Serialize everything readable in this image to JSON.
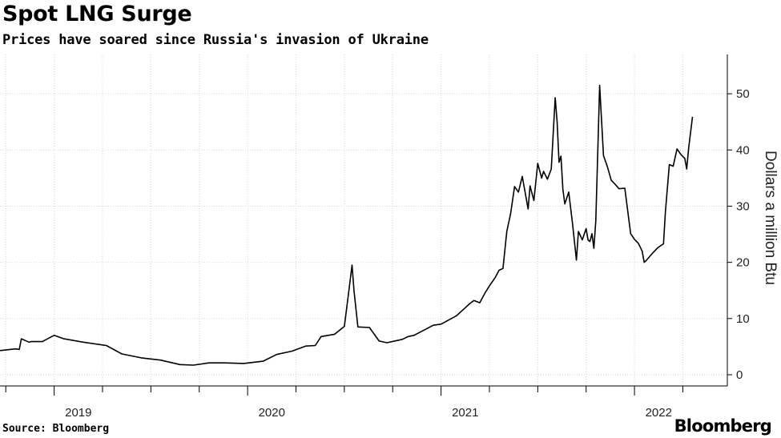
{
  "header": {
    "title": "Spot LNG Surge",
    "subtitle": "Prices have soared since Russia's invasion of Ukraine"
  },
  "footer": {
    "source": "Source: Bloomberg",
    "brand": "Bloomberg"
  },
  "colors": {
    "line": "#000000",
    "grid": "#d7d7d7",
    "axis": "#000000"
  },
  "chart_data": {
    "type": "line",
    "title": "Spot LNG Surge",
    "subtitle": "Prices have soared since Russia's invasion of Ukraine",
    "ylabel": "Dollars a million Btu",
    "xlabel": "",
    "xlim": [
      2018.72,
      2022.48
    ],
    "ylim": [
      -2,
      57
    ],
    "yticks": [
      0,
      10,
      20,
      30,
      40,
      50
    ],
    "xticks": [
      2019,
      2020,
      2021,
      2022
    ],
    "xtick_labels": [
      "2019",
      "2020",
      "2021",
      "2022"
    ],
    "grid": true,
    "y_axis_position": "right",
    "series": [
      {
        "values_x": [
          2018.72,
          2018.8,
          2018.82,
          2018.83,
          2018.87,
          2018.88,
          2018.94,
          2018.96,
          2019.0,
          2019.05,
          2019.15,
          2019.27,
          2019.35,
          2019.45,
          2019.55,
          2019.65,
          2019.72,
          2019.8,
          2019.88,
          2019.98,
          2020.08,
          2020.15,
          2020.23,
          2020.3,
          2020.35,
          2020.38,
          2020.45,
          2020.5,
          2020.52,
          2020.54,
          2020.55,
          2020.57,
          2020.63,
          2020.68,
          2020.72,
          2020.8,
          2020.83,
          2020.86,
          2020.96,
          2021.0,
          2021.08,
          2021.15,
          2021.17,
          2021.2,
          2021.23,
          2021.25,
          2021.28,
          2021.3,
          2021.32,
          2021.34,
          2021.36,
          2021.38,
          2021.4,
          2021.42,
          2021.45,
          2021.46,
          2021.48,
          2021.5,
          2021.52,
          2021.53,
          2021.55,
          2021.57,
          2021.59,
          2021.6,
          2021.61,
          2021.62,
          2021.63,
          2021.64,
          2021.66,
          2021.68,
          2021.7,
          2021.71,
          2021.73,
          2021.75,
          2021.76,
          2021.77,
          2021.78,
          2021.79,
          2021.8,
          2021.82,
          2021.84,
          2021.86,
          2021.88,
          2021.9,
          2021.92,
          2021.95,
          2021.98,
          2022.0,
          2022.02,
          2022.04,
          2022.05,
          2022.06,
          2022.09,
          2022.12,
          2022.15,
          2022.16,
          2022.18,
          2022.2,
          2022.22,
          2022.24,
          2022.26,
          2022.27,
          2022.28,
          2022.3
        ],
        "values": [
          4.3,
          4.6,
          4.5,
          6.4,
          5.8,
          5.9,
          5.9,
          6.3,
          7.0,
          6.4,
          5.8,
          5.2,
          3.7,
          3.0,
          2.6,
          1.8,
          1.7,
          2.1,
          2.1,
          2.0,
          2.4,
          3.6,
          4.2,
          5.1,
          5.2,
          6.8,
          7.2,
          8.6,
          14.0,
          19.5,
          15.0,
          8.5,
          8.4,
          6.0,
          5.7,
          6.3,
          6.8,
          7.0,
          8.8,
          9.0,
          10.5,
          12.7,
          13.2,
          12.8,
          14.7,
          15.8,
          17.3,
          18.6,
          18.9,
          25.5,
          28.7,
          33.5,
          32.5,
          35.3,
          29.5,
          33.6,
          31.0,
          37.6,
          35.0,
          36.2,
          34.8,
          36.6,
          49.3,
          45.0,
          37.8,
          38.9,
          33.0,
          30.4,
          32.5,
          26.8,
          20.4,
          25.5,
          24.0,
          26.0,
          24.0,
          23.7,
          25.1,
          22.5,
          27.4,
          51.5,
          39.0,
          37.0,
          34.6,
          33.9,
          33.1,
          33.2,
          25.1,
          24.1,
          23.4,
          22.0,
          20.0,
          20.3,
          21.5,
          22.6,
          23.3,
          29.0,
          37.4,
          37.1,
          40.2,
          39.2,
          38.5,
          36.6,
          40.3,
          45.9
        ]
      }
    ]
  }
}
